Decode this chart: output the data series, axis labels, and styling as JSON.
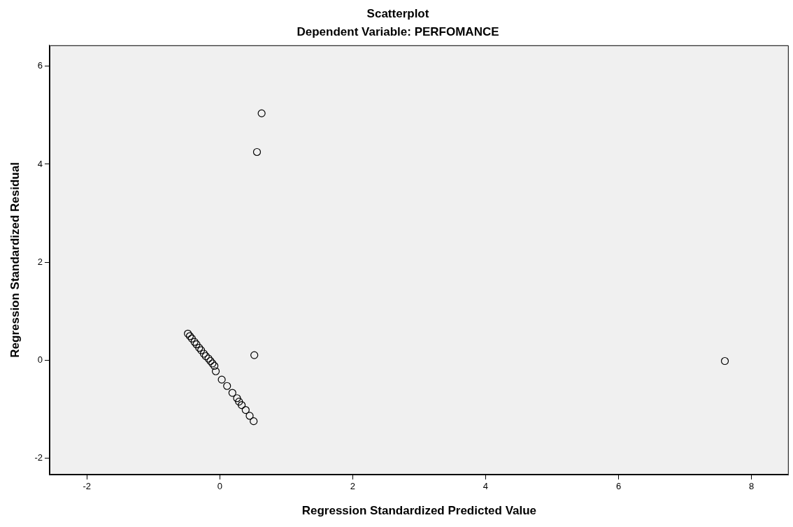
{
  "chart_data": {
    "type": "scatter",
    "title": "Scatterplot",
    "subtitle": "Dependent Variable: PERFOMANCE",
    "xlabel": "Regression Standardized Predicted Value",
    "ylabel": "Regression Standardized Residual",
    "xlim": [
      -2.56,
      8.56
    ],
    "ylim": [
      -2.34,
      6.43
    ],
    "xticks": [
      -2,
      0,
      2,
      4,
      6,
      8
    ],
    "yticks": [
      -2,
      0,
      2,
      4,
      6
    ],
    "grid": false,
    "legend": false,
    "marker": "circle",
    "series": [
      {
        "color": "#000000",
        "x": [
          -0.48,
          -0.45,
          -0.42,
          -0.38,
          -0.35,
          -0.31,
          -0.28,
          -0.24,
          -0.21,
          -0.17,
          -0.14,
          -0.11,
          -0.08,
          -0.06,
          0.03,
          0.11,
          0.19,
          0.26,
          0.29,
          0.33,
          0.39,
          0.45,
          0.51,
          0.52,
          0.56,
          0.63,
          7.6
        ],
        "values": [
          0.54,
          0.49,
          0.44,
          0.37,
          0.32,
          0.25,
          0.2,
          0.13,
          0.08,
          0.03,
          -0.02,
          -0.07,
          -0.12,
          -0.23,
          -0.4,
          -0.53,
          -0.67,
          -0.78,
          -0.85,
          -0.92,
          -1.02,
          -1.14,
          -1.25,
          0.1,
          4.25,
          5.04,
          -0.02
        ]
      }
    ]
  }
}
